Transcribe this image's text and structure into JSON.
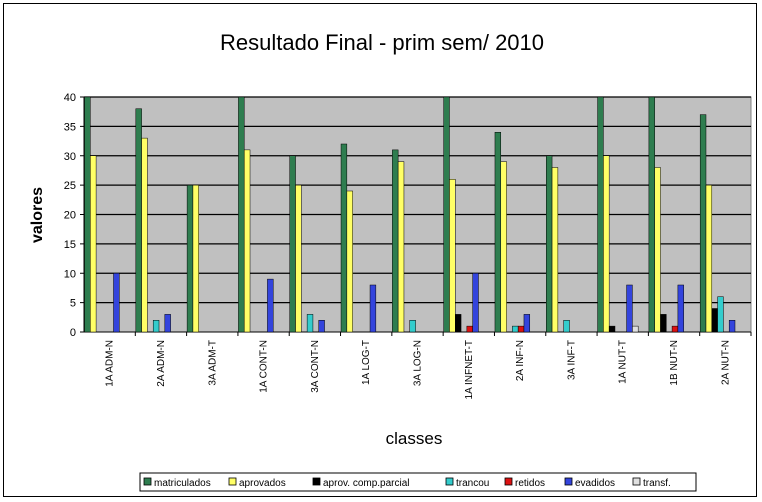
{
  "chart_data": {
    "type": "bar",
    "title": "Resultado Final - prim sem/ 2010",
    "xlabel": "classes",
    "ylabel": "valores",
    "ylim": [
      0,
      40
    ],
    "yticks": [
      0,
      5,
      10,
      15,
      20,
      25,
      30,
      35,
      40
    ],
    "grid": true,
    "legend_position": "bottom",
    "categories": [
      "1A ADM-N",
      "2A ADM-N",
      "3A ADM-T",
      "1A CONT-N",
      "3A CONT-N",
      "1A LOG-T",
      "3A LOG-N",
      "1A INFNET-T",
      "2A INF-N",
      "3A INF-T",
      "1A NUT-T",
      "1B NUT-N",
      "2A NUT-N"
    ],
    "series": [
      {
        "name": "matriculados",
        "color": "#2e7d4f",
        "values": [
          40,
          38,
          25,
          40,
          30,
          32,
          31,
          40,
          34,
          30,
          40,
          40,
          37
        ]
      },
      {
        "name": "aprovados",
        "color": "#ffff66",
        "values": [
          30,
          33,
          25,
          31,
          25,
          24,
          29,
          26,
          29,
          28,
          30,
          28,
          25
        ]
      },
      {
        "name": "aprov. comp.parcial",
        "color": "#000000",
        "values": [
          0,
          0,
          0,
          0,
          0,
          0,
          0,
          3,
          0,
          0,
          1,
          3,
          4
        ]
      },
      {
        "name": "trancou",
        "color": "#33cccc",
        "values": [
          0,
          2,
          0,
          0,
          3,
          0,
          2,
          0,
          1,
          2,
          0,
          0,
          6
        ]
      },
      {
        "name": "retidos",
        "color": "#dd1111",
        "values": [
          0,
          0,
          0,
          0,
          0,
          0,
          0,
          1,
          1,
          0,
          0,
          1,
          0
        ]
      },
      {
        "name": "evadidos",
        "color": "#3344dd",
        "values": [
          10,
          3,
          0,
          9,
          2,
          8,
          0,
          10,
          3,
          0,
          8,
          8,
          2
        ]
      },
      {
        "name": "transf.",
        "color": "#e0e0e0",
        "values": [
          0,
          0,
          0,
          0,
          0,
          0,
          0,
          0,
          0,
          0,
          1,
          0,
          0
        ]
      }
    ]
  }
}
